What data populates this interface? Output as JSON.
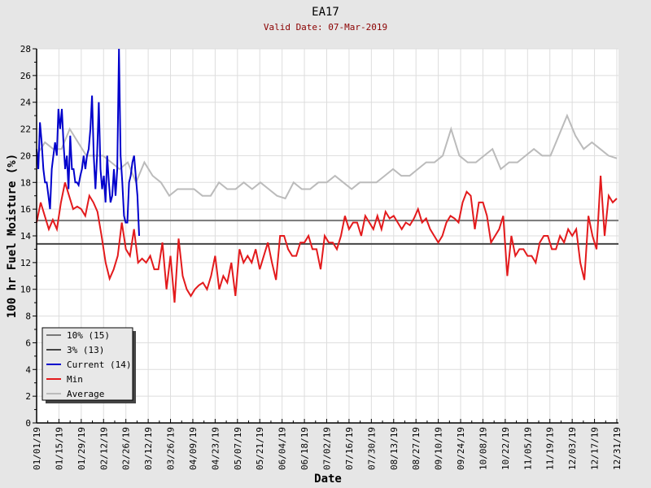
{
  "chart_data": {
    "type": "line",
    "title": "EA17",
    "subtitle": "Valid Date: 07-Mar-2019",
    "xlabel": "Date",
    "ylabel": "100 hr Fuel Moisture (%)",
    "ylim": [
      0,
      28
    ],
    "yticks": [
      0,
      2,
      4,
      6,
      8,
      10,
      12,
      14,
      16,
      18,
      20,
      22,
      24,
      26,
      28
    ],
    "xlim_days": [
      0,
      364
    ],
    "xtick_labels": [
      "01/01/19",
      "01/15/19",
      "01/29/19",
      "02/12/19",
      "02/26/19",
      "03/12/19",
      "03/26/19",
      "04/09/19",
      "04/23/19",
      "05/07/19",
      "05/21/19",
      "06/04/19",
      "06/18/19",
      "07/02/19",
      "07/16/19",
      "07/30/19",
      "08/13/19",
      "08/27/19",
      "09/10/19",
      "09/24/19",
      "10/08/19",
      "10/22/19",
      "11/05/19",
      "11/19/19",
      "12/03/19",
      "12/17/19",
      "12/31/19"
    ],
    "grid": true,
    "legend_position": "bottom-left",
    "legend": [
      {
        "label": "10% (15)",
        "color": "#777777"
      },
      {
        "label": "3% (13)",
        "color": "#444444"
      },
      {
        "label": "Current (14)",
        "color": "#0000cc"
      },
      {
        "label": "Min",
        "color": "#e31a1c"
      },
      {
        "label": "Average",
        "color": "#bbbbbb"
      }
    ],
    "hlines": [
      {
        "name": "10%",
        "value": 15.15,
        "color": "#777777"
      },
      {
        "name": "3%",
        "value": 13.4,
        "color": "#444444"
      }
    ],
    "series": [
      {
        "name": "Average",
        "color": "#bbbbbb",
        "day_range": [
          0,
          364
        ],
        "values": [
          20,
          21,
          20.5,
          20.5,
          22,
          21,
          20,
          20,
          20,
          19.5,
          19,
          19.5,
          18,
          19.5,
          18.5,
          18,
          17,
          17.5,
          17.5,
          17.5,
          17,
          17,
          18,
          17.5,
          17.5,
          18,
          17.5,
          18,
          17.5,
          17,
          16.8,
          18,
          17.5,
          17.5,
          18,
          18,
          18.5,
          18,
          17.5,
          18,
          18,
          18,
          18.5,
          19,
          18.5,
          18.5,
          19,
          19.5,
          19.5,
          20,
          22,
          20,
          19.5,
          19.5,
          20,
          20.5,
          19,
          19.5,
          19.5,
          20,
          20.5,
          20,
          20,
          21.5,
          23,
          21.5,
          20.5,
          21,
          20.5,
          20,
          19.8
        ]
      },
      {
        "name": "Min",
        "color": "#e31a1c",
        "day_range": [
          0,
          364
        ],
        "values": [
          15,
          16.5,
          15.5,
          14.5,
          15.2,
          14.5,
          16.5,
          18,
          17,
          16,
          16.2,
          16,
          15.5,
          17,
          16.5,
          15.8,
          14,
          12,
          10.8,
          11.5,
          12.5,
          15,
          13,
          12.5,
          14.5,
          12,
          12.3,
          12,
          12.5,
          11.5,
          11.5,
          13.5,
          10,
          12.5,
          9,
          13.8,
          11,
          10,
          9.5,
          10,
          10.3,
          10.5,
          10,
          11,
          12.5,
          10,
          11,
          10.5,
          12,
          9.5,
          13,
          12,
          12.5,
          12,
          13,
          11.5,
          12.5,
          13.5,
          12,
          10.7,
          14,
          14,
          13,
          12.5,
          12.5,
          13.5,
          13.5,
          14,
          13,
          13,
          11.5,
          14,
          13.5,
          13.5,
          13,
          14,
          15.5,
          14.5,
          15,
          15,
          14,
          15.5,
          15,
          14.5,
          15.5,
          14.5,
          15.8,
          15.3,
          15.5,
          15,
          14.5,
          15,
          14.8,
          15.3,
          16,
          15,
          15.3,
          14.5,
          14,
          13.5,
          14,
          15,
          15.5,
          15.3,
          15,
          16.5,
          17.3,
          17,
          14.5,
          16.5,
          16.5,
          15.5,
          13.5,
          14,
          14.5,
          15.5,
          11,
          14,
          12.5,
          13,
          13,
          12.5,
          12.5,
          12,
          13.5,
          14,
          14,
          13,
          13,
          14,
          13.5,
          14.5,
          14,
          14.5,
          12,
          10.7,
          15.5,
          14,
          13,
          18.5,
          14,
          17,
          16.5,
          16.8
        ]
      },
      {
        "name": "Current",
        "color": "#0000cc",
        "day_range": [
          0,
          64.3
        ],
        "values": [
          20.5,
          19,
          22.5,
          21,
          19,
          18,
          18,
          17,
          16,
          19,
          20,
          21,
          20,
          23.5,
          22,
          23.5,
          21,
          19,
          20,
          17.5,
          21.5,
          19,
          19,
          18,
          18,
          17.8,
          18.5,
          19,
          20,
          19,
          20,
          20.5,
          22,
          24.5,
          20,
          17.5,
          20,
          24,
          19,
          17.5,
          18.5,
          16.5,
          20,
          18,
          16.5,
          17,
          19,
          17,
          19,
          28,
          20,
          18,
          15.5,
          15,
          15,
          18,
          18.5,
          19.5,
          20,
          18.5,
          17,
          14
        ]
      }
    ]
  }
}
